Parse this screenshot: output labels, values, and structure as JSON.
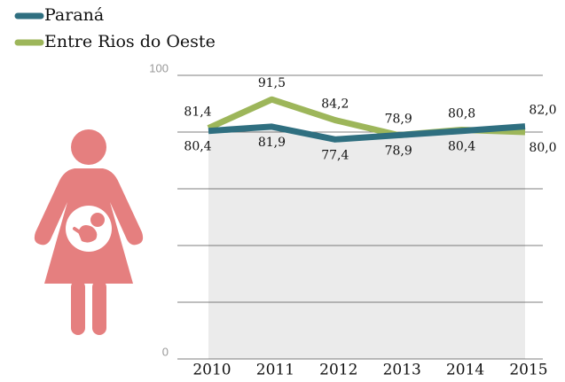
{
  "chart_data": {
    "type": "line",
    "categories": [
      "2010",
      "2011",
      "2012",
      "2013",
      "2014",
      "2015"
    ],
    "series": [
      {
        "name": "Paraná",
        "color": "#2f6f80",
        "values": [
          80.4,
          81.9,
          77.4,
          78.9,
          80.4,
          82.0
        ],
        "value_labels": [
          "80,4",
          "81,9",
          "77,4",
          "78,9",
          "80,4",
          "82,0"
        ]
      },
      {
        "name": "Entre Rios do Oeste",
        "color": "#9db65a",
        "values": [
          81.4,
          91.5,
          84.2,
          78.9,
          80.8,
          80.0
        ],
        "value_labels": [
          "81,4",
          "91,5",
          "84,2",
          "78,9",
          "80,8",
          "80,0"
        ]
      }
    ],
    "ylim": [
      0,
      100
    ],
    "yticks": [
      0,
      100
    ],
    "minor_yticks": [
      20,
      40,
      60,
      80
    ],
    "grid": true,
    "legend": "top-left"
  }
}
